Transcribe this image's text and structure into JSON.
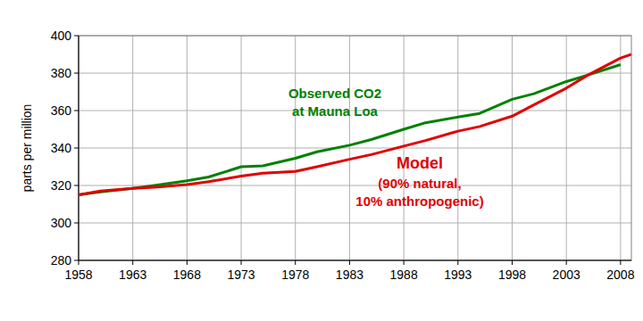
{
  "chart_data": {
    "type": "line",
    "y_label": "parts per million",
    "x": [
      1958,
      1960,
      1963,
      1965,
      1968,
      1970,
      1973,
      1975,
      1978,
      1980,
      1983,
      1985,
      1988,
      1990,
      1993,
      1995,
      1998,
      2000,
      2003,
      2005,
      2008,
      2009
    ],
    "series": [
      {
        "color": "#008000",
        "annotation": [
          "Observed CO2",
          "at Mauna Loa"
        ],
        "values": [
          315,
          316.5,
          318.5,
          320,
          322.5,
          324.5,
          330,
          330.5,
          334.5,
          338,
          341.5,
          344.5,
          350,
          353.5,
          356.5,
          358.5,
          366,
          369,
          375.5,
          379,
          384.5,
          null
        ]
      },
      {
        "color": "#e00000",
        "annotation": [
          "Model",
          "(90% natural,",
          "10% anthropogenic)"
        ],
        "values": [
          315,
          317,
          318.5,
          319,
          320.5,
          322,
          325,
          326.5,
          327.5,
          330,
          334,
          336.5,
          341,
          344,
          349,
          351.5,
          357,
          363,
          372,
          379,
          388,
          390
        ]
      }
    ],
    "xlim": [
      1958,
      2009
    ],
    "xticks": [
      1958,
      1963,
      1968,
      1973,
      1978,
      1983,
      1988,
      1993,
      1998,
      2003,
      2008
    ],
    "ylim": [
      280,
      400
    ],
    "yticks": [
      280,
      300,
      320,
      340,
      360,
      380,
      400
    ],
    "grid": true
  }
}
